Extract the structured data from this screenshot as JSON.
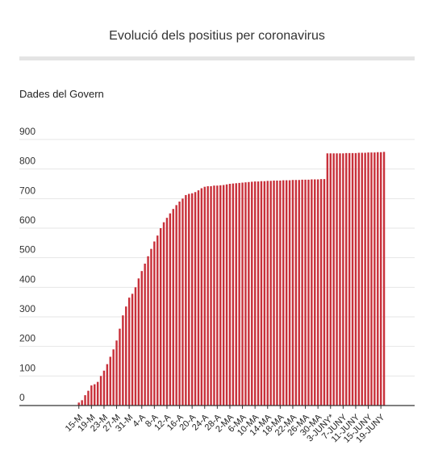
{
  "header": {
    "title": "Evolució dels positius per coronavirus",
    "subtitle": "Dades del Govern"
  },
  "colors": {
    "bar": "#c8303a",
    "grid": "#e6e6e6",
    "axis": "#333333"
  },
  "chart_data": {
    "type": "bar",
    "title": "Evolució dels positius per coronavirus",
    "subtitle": "Dades del Govern",
    "xlabel": "",
    "ylabel": "",
    "ylim": [
      0,
      900
    ],
    "yticks": [
      0,
      100,
      200,
      300,
      400,
      500,
      600,
      700,
      800,
      900
    ],
    "grid": true,
    "legend": "none",
    "tick_labels": [
      {
        "label": "15-M",
        "index": 2
      },
      {
        "label": "19-M",
        "index": 6
      },
      {
        "label": "23-M",
        "index": 10
      },
      {
        "label": "27-M",
        "index": 14
      },
      {
        "label": "31-M",
        "index": 18
      },
      {
        "label": "4-A",
        "index": 22
      },
      {
        "label": "8-A",
        "index": 26
      },
      {
        "label": "12-A",
        "index": 30
      },
      {
        "label": "16-A",
        "index": 34
      },
      {
        "label": "20-A",
        "index": 38
      },
      {
        "label": "24-A",
        "index": 42
      },
      {
        "label": "28-A",
        "index": 46
      },
      {
        "label": "2-MA",
        "index": 50
      },
      {
        "label": "6-MA",
        "index": 54
      },
      {
        "label": "10-MA",
        "index": 58
      },
      {
        "label": "14-MA",
        "index": 62
      },
      {
        "label": "18-MA",
        "index": 66
      },
      {
        "label": "22-MA",
        "index": 70
      },
      {
        "label": "26-MA",
        "index": 74
      },
      {
        "label": "30-MA",
        "index": 78
      },
      {
        "label": "3-JUNY*",
        "index": 82
      },
      {
        "label": "7-JUNY",
        "index": 86
      },
      {
        "label": "11-JUNY",
        "index": 90
      },
      {
        "label": "15-JUNY",
        "index": 94
      },
      {
        "label": "19-JUNY",
        "index": 98
      }
    ],
    "values": [
      0,
      0,
      10,
      18,
      35,
      50,
      68,
      72,
      80,
      100,
      118,
      140,
      165,
      190,
      220,
      260,
      305,
      335,
      365,
      378,
      400,
      430,
      455,
      480,
      505,
      530,
      555,
      575,
      600,
      620,
      635,
      650,
      665,
      678,
      690,
      700,
      712,
      716,
      718,
      722,
      728,
      735,
      740,
      742,
      742,
      744,
      744,
      745,
      746,
      748,
      750,
      751,
      752,
      753,
      754,
      755,
      756,
      757,
      758,
      758,
      759,
      759,
      760,
      760,
      761,
      761,
      761,
      762,
      762,
      762,
      763,
      763,
      763,
      764,
      764,
      764,
      765,
      765,
      765,
      766,
      766,
      853,
      853,
      853,
      853,
      853,
      853,
      854,
      854,
      854,
      854,
      855,
      855,
      855,
      856,
      856,
      856,
      857,
      857,
      858
    ]
  }
}
